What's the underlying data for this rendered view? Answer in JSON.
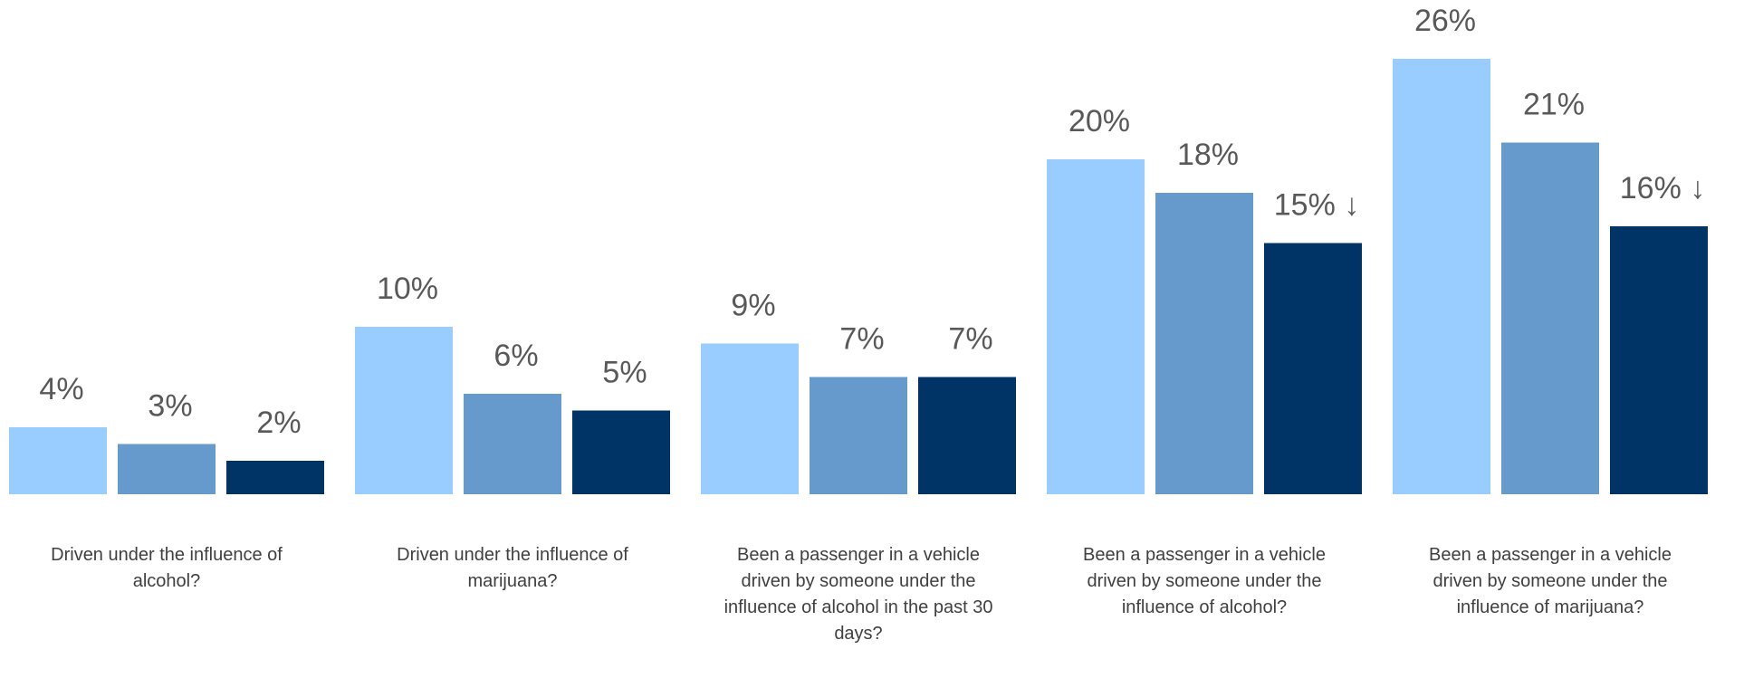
{
  "chart_data": {
    "type": "bar",
    "categories": [
      "Driven under the influence of alcohol?",
      "Driven under the influence of marijuana?",
      "Been a passenger in a vehicle driven by someone under the influence of alcohol in the past 30 days?",
      "Been a passenger in a vehicle driven by someone under the influence of alcohol?",
      "Been a passenger in a vehicle driven by someone under the influence of marijuana?"
    ],
    "series": [
      {
        "color": "#99ccff",
        "values": [
          4,
          10,
          9,
          20,
          26
        ],
        "value_labels": [
          "4%",
          "10%",
          "9%",
          "20%",
          "26%"
        ]
      },
      {
        "color": "#6699cc",
        "values": [
          3,
          6,
          7,
          18,
          21
        ],
        "value_labels": [
          "3%",
          "6%",
          "7%",
          "18%",
          "21%"
        ]
      },
      {
        "color": "#003366",
        "values": [
          2,
          5,
          7,
          15,
          16
        ],
        "value_labels": [
          "2%",
          "5%",
          "7%",
          "15% ↓",
          "16% ↓"
        ]
      }
    ],
    "ylim": [
      0,
      28
    ]
  }
}
